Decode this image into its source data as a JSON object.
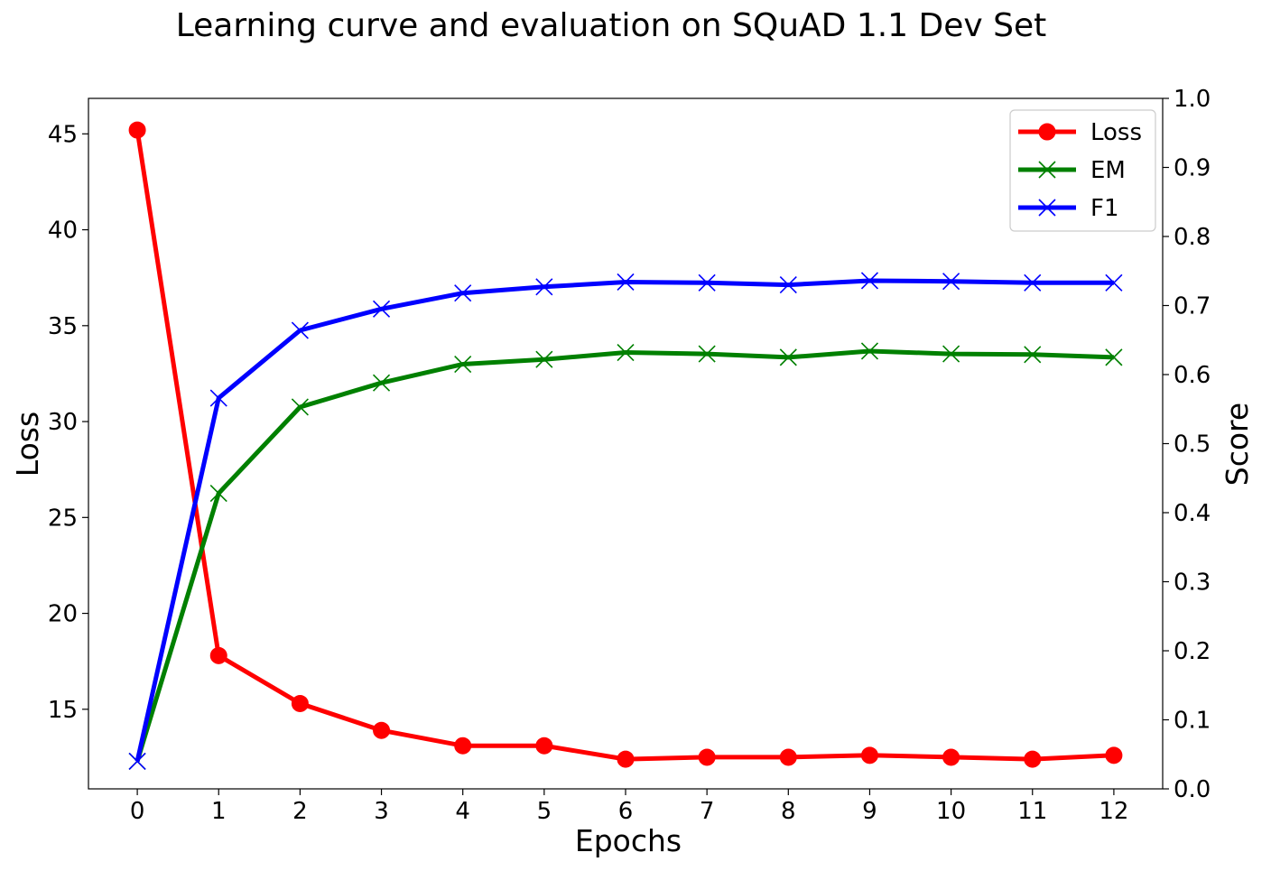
{
  "chart_data": {
    "type": "line",
    "title": "Learning curve and evaluation on SQuAD 1.1 Dev Set",
    "xlabel": "Epochs",
    "ylabel_left": "Loss",
    "ylabel_right": "Score",
    "x": [
      0,
      1,
      2,
      3,
      4,
      5,
      6,
      7,
      8,
      9,
      10,
      11,
      12
    ],
    "x_ticks": [
      "0",
      "1",
      "2",
      "3",
      "4",
      "5",
      "6",
      "7",
      "8",
      "9",
      "10",
      "11",
      "12"
    ],
    "ylim_left": [
      10.85,
      46.85
    ],
    "yticks_left": [
      "15",
      "20",
      "25",
      "30",
      "35",
      "40",
      "45"
    ],
    "ylim_right": [
      0.0,
      1.0
    ],
    "yticks_right": [
      "0.0",
      "0.1",
      "0.2",
      "0.3",
      "0.4",
      "0.5",
      "0.6",
      "0.7",
      "0.8",
      "0.9",
      "1.0"
    ],
    "grid": false,
    "legend_position": "top-right",
    "series": [
      {
        "name": "Loss",
        "axis": "left",
        "color": "#ff0000",
        "marker": "circle",
        "values": [
          45.2,
          17.8,
          15.3,
          13.9,
          13.1,
          13.1,
          12.4,
          12.5,
          12.5,
          12.6,
          12.5,
          12.4,
          12.6
        ]
      },
      {
        "name": "EM",
        "axis": "right",
        "color": "#008000",
        "marker": "x",
        "values": [
          0.04,
          0.428,
          0.553,
          0.588,
          0.615,
          0.622,
          0.632,
          0.63,
          0.625,
          0.634,
          0.63,
          0.629,
          0.625
        ]
      },
      {
        "name": "F1",
        "axis": "right",
        "color": "#0000ff",
        "marker": "x",
        "values": [
          0.04,
          0.566,
          0.664,
          0.695,
          0.718,
          0.727,
          0.734,
          0.733,
          0.73,
          0.736,
          0.735,
          0.733,
          0.733
        ]
      }
    ]
  }
}
